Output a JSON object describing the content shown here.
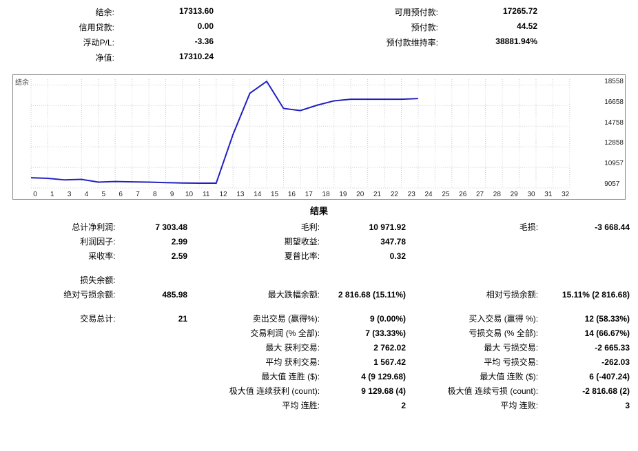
{
  "account": {
    "rows": [
      {
        "l_label": "结余:",
        "l_value": "17313.60",
        "r_label": "可用预付款:",
        "r_value": "17265.72"
      },
      {
        "l_label": "信用贷款:",
        "l_value": "0.00",
        "r_label": "预付款:",
        "r_value": "44.52"
      },
      {
        "l_label": "浮动P/L:",
        "l_value": "-3.36",
        "r_label": "预付款维持率:",
        "r_value": "38881.94%"
      },
      {
        "l_label": "净值:",
        "l_value": "17310.24",
        "r_label": "",
        "r_value": ""
      }
    ]
  },
  "chart": {
    "label": "结余",
    "line_color": "#2020c0",
    "grid_color": "#cccccc",
    "border_color": "#888888",
    "background": "#ffffff",
    "x_ticks": [
      "0",
      "1",
      "3",
      "4",
      "5",
      "6",
      "7",
      "8",
      "9",
      "10",
      "11",
      "12",
      "13",
      "14",
      "15",
      "16",
      "17",
      "18",
      "19",
      "20",
      "21",
      "22",
      "23",
      "24",
      "25",
      "26",
      "27",
      "28",
      "29",
      "30",
      "31",
      "32"
    ],
    "y_ticks": [
      "18558",
      "16658",
      "14758",
      "12858",
      "10957",
      "9057"
    ],
    "x_min": 0,
    "x_max": 32,
    "y_min": 9057,
    "y_max": 19100,
    "points": [
      {
        "x": 0,
        "y": 10000
      },
      {
        "x": 1,
        "y": 9950
      },
      {
        "x": 2,
        "y": 9800
      },
      {
        "x": 3,
        "y": 9850
      },
      {
        "x": 4,
        "y": 9600
      },
      {
        "x": 5,
        "y": 9650
      },
      {
        "x": 6,
        "y": 9620
      },
      {
        "x": 7,
        "y": 9600
      },
      {
        "x": 8,
        "y": 9550
      },
      {
        "x": 9,
        "y": 9520
      },
      {
        "x": 10,
        "y": 9500
      },
      {
        "x": 11,
        "y": 9500
      },
      {
        "x": 12,
        "y": 14000
      },
      {
        "x": 13,
        "y": 17800
      },
      {
        "x": 14,
        "y": 18900
      },
      {
        "x": 15,
        "y": 16400
      },
      {
        "x": 16,
        "y": 16200
      },
      {
        "x": 17,
        "y": 16700
      },
      {
        "x": 18,
        "y": 17100
      },
      {
        "x": 19,
        "y": 17250
      },
      {
        "x": 20,
        "y": 17250
      },
      {
        "x": 21,
        "y": 17250
      },
      {
        "x": 22,
        "y": 17250
      },
      {
        "x": 23,
        "y": 17310
      }
    ]
  },
  "results_title": "结果",
  "results": [
    {
      "c1l": "总计净利润:",
      "c1v": "7 303.48",
      "c2l": "毛利:",
      "c2v": "10 971.92",
      "c3l": "毛损:",
      "c3v": "-3 668.44"
    },
    {
      "c1l": "利润因子:",
      "c1v": "2.99",
      "c2l": "期望收益:",
      "c2v": "347.78",
      "c3l": "",
      "c3v": ""
    },
    {
      "c1l": "采收率:",
      "c1v": "2.59",
      "c2l": "夏普比率:",
      "c2v": "0.32",
      "c3l": "",
      "c3v": ""
    },
    {
      "spacer": true
    },
    {
      "c1l": "损失余额:",
      "c1v": "",
      "c2l": "",
      "c2v": "",
      "c3l": "",
      "c3v": ""
    },
    {
      "c1l": "绝对亏损余额:",
      "c1v": "485.98",
      "c2l": "最大跌幅余额:",
      "c2v": "2 816.68 (15.11%)",
      "c3l": "相对亏损余额:",
      "c3v": "15.11% (2 816.68)"
    },
    {
      "spacer": true
    },
    {
      "c1l": "交易总计:",
      "c1v": "21",
      "c2l": "卖出交易 (赢得%):",
      "c2v": "9 (0.00%)",
      "c3l": "买入交易 (赢得  %):",
      "c3v": "12 (58.33%)"
    },
    {
      "c1l": "",
      "c1v": "",
      "c2l": "交易利润 (% 全部):",
      "c2v": "7 (33.33%)",
      "c3l": "亏损交易 (% 全部):",
      "c3v": "14 (66.67%)"
    },
    {
      "c1l": "",
      "c1v": "",
      "c2l": "最大 获利交易:",
      "c2v": "2 762.02",
      "c3l": "最大 亏损交易:",
      "c3v": "-2 665.33"
    },
    {
      "c1l": "",
      "c1v": "",
      "c2l": "平均 获利交易:",
      "c2v": "1 567.42",
      "c3l": "平均 亏损交易:",
      "c3v": "-262.03"
    },
    {
      "c1l": "",
      "c1v": "",
      "c2l": "最大值 连胜 ($):",
      "c2v": "4 (9 129.68)",
      "c3l": "最大值 连败 ($):",
      "c3v": "6 (-407.24)"
    },
    {
      "c1l": "",
      "c1v": "",
      "c2l": "极大值 连续获利 (count):",
      "c2v": "9 129.68 (4)",
      "c3l": "极大值 连续亏损 (count):",
      "c3v": "-2 816.68 (2)"
    },
    {
      "c1l": "",
      "c1v": "",
      "c2l": "平均 连胜:",
      "c2v": "2",
      "c3l": "平均 连败:",
      "c3v": "3"
    }
  ]
}
